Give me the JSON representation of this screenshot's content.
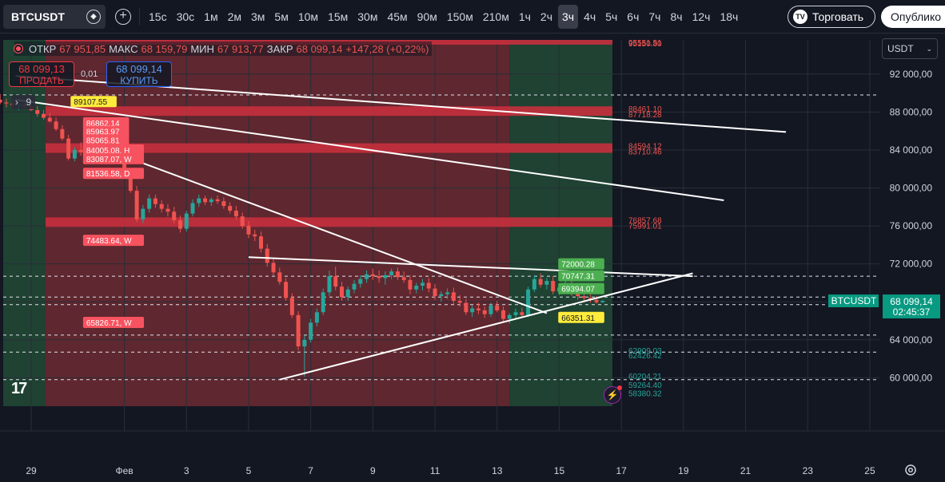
{
  "toolbar": {
    "symbol": "BTCUSDT",
    "intervals": [
      "15с",
      "30с",
      "1м",
      "2м",
      "3м",
      "5м",
      "10м",
      "15м",
      "30м",
      "45м",
      "90м",
      "150м",
      "210м",
      "1ч",
      "2ч",
      "3ч",
      "4ч",
      "5ч",
      "6ч",
      "7ч",
      "8ч",
      "12ч",
      "18ч"
    ],
    "active_interval": "3ч",
    "trade_label": "Торговать",
    "publish_label": "Опублико"
  },
  "legend": {
    "open_label": "ОТКР",
    "open": "67 951,85",
    "high_label": "МАКС",
    "high": "68 159,79",
    "low_label": "МИН",
    "low": "67 913,77",
    "close_label": "ЗАКР",
    "close": "68 099,14",
    "change": "+147,28 (+0,22%)"
  },
  "order": {
    "sell_price": "68 099,13",
    "sell_label": "ПРОДАТЬ",
    "spread": "0,01",
    "buy_price": "68 099,14",
    "buy_label": "КУПИТЬ"
  },
  "indicator_count": "9",
  "currency": "USDT",
  "price_tag": {
    "symbol": "BTCUSDT",
    "price": "68 099,14",
    "countdown": "02:45:37"
  },
  "colors": {
    "up": "#26a69a",
    "down": "#ef5350",
    "bg": "#131722",
    "zone_red": "#7a2e34",
    "zone_green": "#245238",
    "band_red": "#c7303d"
  },
  "chart_data": {
    "type": "candlestick",
    "ylim": [
      57000,
      95600
    ],
    "y_ticks": [
      92000,
      88000,
      84000,
      80000,
      76000,
      72000,
      68000,
      64000,
      60000
    ],
    "y_tick_labels": [
      "92 000,00",
      "88 000,00",
      "84 000,00",
      "80 000,00",
      "76 000,00",
      "72 000,00",
      "68 000,00",
      "64 000,00",
      "60 000,00"
    ],
    "x_ticks": [
      {
        "t": 0,
        "label": "29"
      },
      {
        "t": 3,
        "label": "Фев"
      },
      {
        "t": 5,
        "label": "3"
      },
      {
        "t": 7,
        "label": "5"
      },
      {
        "t": 9,
        "label": "7"
      },
      {
        "t": 11,
        "label": "9"
      },
      {
        "t": 13,
        "label": "11"
      },
      {
        "t": 15,
        "label": "13"
      },
      {
        "t": 17,
        "label": "15"
      },
      {
        "t": 19,
        "label": "17"
      },
      {
        "t": 21,
        "label": "19"
      },
      {
        "t": 23,
        "label": "21"
      },
      {
        "t": 25,
        "label": "23"
      },
      {
        "t": 27,
        "label": "25"
      }
    ],
    "bands": [
      {
        "y1": 95100,
        "y2": 95600,
        "label_a": "95551.51",
        "label_b": "95150.80"
      },
      {
        "y1": 87600,
        "y2": 88600,
        "label_a": "88461.10",
        "label_b": "87718.28"
      },
      {
        "y1": 83700,
        "y2": 84700,
        "label_a": "84594.12",
        "label_b": "83710.46"
      },
      {
        "y1": 75900,
        "y2": 76900,
        "label_a": "76857.68",
        "label_b": "75991.01"
      }
    ],
    "dashed_levels": [
      89800,
      70700,
      68500,
      67700,
      64500,
      62700,
      59800
    ],
    "green_labels": [
      {
        "y": 62900,
        "text": "62909.03"
      },
      {
        "y": 62400,
        "text": "62426.42"
      },
      {
        "y": 60200,
        "text": "60204.21"
      },
      {
        "y": 59264,
        "text": "59264.40"
      },
      {
        "y": 58380,
        "text": "58380.32"
      }
    ],
    "tags": [
      {
        "t": 0.6,
        "y": 89108,
        "text": "89107.55",
        "style": "yellow"
      },
      {
        "t": 1.0,
        "y": 86862,
        "text": "86862.14",
        "style": "red"
      },
      {
        "t": 1.0,
        "y": 85964,
        "text": "85963.97",
        "style": "red"
      },
      {
        "t": 1.0,
        "y": 85065,
        "text": "85065.81",
        "style": "red"
      },
      {
        "t": 1.0,
        "y": 84005,
        "text": "84005.08, H",
        "style": "red"
      },
      {
        "t": 1.0,
        "y": 83087,
        "text": "83087.07, W",
        "style": "red"
      },
      {
        "t": 1.0,
        "y": 81537,
        "text": "81536.58, D",
        "style": "red"
      },
      {
        "t": 1.0,
        "y": 74484,
        "text": "74483.64, W",
        "style": "red"
      },
      {
        "t": 1.0,
        "y": 65827,
        "text": "65826.71, W",
        "style": "red"
      },
      {
        "t": 16.3,
        "y": 72000,
        "text": "72000.28",
        "style": "green"
      },
      {
        "t": 16.3,
        "y": 70747,
        "text": "70747.31",
        "style": "green"
      },
      {
        "t": 16.3,
        "y": 69394,
        "text": "69394.07",
        "style": "green"
      },
      {
        "t": 16.3,
        "y": 66351,
        "text": "66351.31",
        "style": "yellow"
      }
    ],
    "trendlines": [
      {
        "t1": -0.5,
        "y1": 91800,
        "t2": 24.3,
        "y2": 85900
      },
      {
        "t1": -0.5,
        "y1": 89300,
        "t2": 22.3,
        "y2": 78700
      },
      {
        "t1": 1.8,
        "y1": 84800,
        "t2": 16.6,
        "y2": 66800
      },
      {
        "t1": 7.0,
        "y1": 72700,
        "t2": 21.3,
        "y2": 70700
      },
      {
        "t1": 8.0,
        "y1": 59800,
        "t2": 21.3,
        "y2": 71000
      }
    ],
    "candles": [
      [
        -1.0,
        89300,
        89900,
        88800,
        89000
      ],
      [
        -0.8,
        89000,
        89400,
        88500,
        88900
      ],
      [
        -0.6,
        88900,
        89300,
        88400,
        88700
      ],
      [
        -0.4,
        88700,
        89100,
        88200,
        88800
      ],
      [
        -0.2,
        88800,
        89200,
        88300,
        88600
      ],
      [
        0.0,
        88600,
        89000,
        88100,
        88200
      ],
      [
        0.2,
        88200,
        88600,
        87500,
        87800
      ],
      [
        0.4,
        87800,
        88200,
        87200,
        87400
      ],
      [
        0.6,
        87400,
        87900,
        86900,
        87000
      ],
      [
        0.8,
        87000,
        87400,
        86000,
        86200
      ],
      [
        1.0,
        86200,
        86600,
        85000,
        85200
      ],
      [
        1.2,
        85200,
        85600,
        82900,
        83100
      ],
      [
        1.4,
        83100,
        84300,
        82800,
        84000
      ],
      [
        1.6,
        84000,
        84800,
        83400,
        83800
      ],
      [
        1.8,
        83800,
        84200,
        82900,
        83100
      ],
      [
        2.0,
        83100,
        83800,
        82500,
        83500
      ],
      [
        2.2,
        83500,
        84400,
        83100,
        84200
      ],
      [
        2.4,
        84200,
        84900,
        83700,
        84000
      ],
      [
        2.6,
        84000,
        84300,
        82900,
        83200
      ],
      [
        2.8,
        83200,
        83600,
        82600,
        83000
      ],
      [
        3.0,
        83000,
        83400,
        81600,
        81800
      ],
      [
        3.2,
        81800,
        82100,
        79500,
        79700
      ],
      [
        3.4,
        79700,
        80200,
        76400,
        76700
      ],
      [
        3.6,
        76700,
        78200,
        76300,
        77800
      ],
      [
        3.8,
        77800,
        79300,
        77400,
        78900
      ],
      [
        4.0,
        78900,
        79300,
        77900,
        78300
      ],
      [
        4.2,
        78300,
        78700,
        77400,
        77800
      ],
      [
        4.4,
        77800,
        78300,
        77000,
        77500
      ],
      [
        4.6,
        77500,
        78000,
        76300,
        76600
      ],
      [
        4.8,
        76600,
        77100,
        75300,
        75700
      ],
      [
        5.0,
        75700,
        77600,
        75400,
        77300
      ],
      [
        5.2,
        77300,
        78800,
        77000,
        78400
      ],
      [
        5.4,
        78400,
        79300,
        78000,
        78900
      ],
      [
        5.6,
        78900,
        79200,
        78200,
        78500
      ],
      [
        5.8,
        78500,
        79000,
        78100,
        78800
      ],
      [
        6.0,
        78800,
        79200,
        78300,
        78600
      ],
      [
        6.2,
        78600,
        79000,
        77800,
        78100
      ],
      [
        6.4,
        78100,
        78500,
        77300,
        77600
      ],
      [
        6.6,
        77600,
        78100,
        76700,
        77000
      ],
      [
        6.8,
        77000,
        77400,
        75700,
        76000
      ],
      [
        7.0,
        76000,
        76500,
        74700,
        75100
      ],
      [
        7.2,
        75100,
        75600,
        74400,
        74900
      ],
      [
        7.4,
        74900,
        75400,
        73200,
        73600
      ],
      [
        7.6,
        73600,
        74100,
        71700,
        72100
      ],
      [
        7.8,
        72100,
        72600,
        70800,
        71100
      ],
      [
        8.0,
        71100,
        71600,
        69800,
        70100
      ],
      [
        8.2,
        70100,
        70500,
        68100,
        68400
      ],
      [
        8.4,
        68400,
        68900,
        66300,
        66600
      ],
      [
        8.6,
        66600,
        67000,
        62900,
        63300
      ],
      [
        8.8,
        63300,
        64500,
        60100,
        64000
      ],
      [
        9.0,
        64000,
        66200,
        63700,
        65800
      ],
      [
        9.2,
        65800,
        67300,
        65400,
        66900
      ],
      [
        9.4,
        66900,
        69400,
        66600,
        69000
      ],
      [
        9.6,
        69000,
        71300,
        68600,
        70700
      ],
      [
        9.8,
        70700,
        71700,
        69200,
        69600
      ],
      [
        10.0,
        69600,
        70100,
        68100,
        68500
      ],
      [
        10.2,
        68500,
        69600,
        68100,
        69300
      ],
      [
        10.4,
        69300,
        70300,
        68900,
        69900
      ],
      [
        10.6,
        69900,
        70800,
        69500,
        70400
      ],
      [
        10.8,
        70400,
        71300,
        70000,
        70900
      ],
      [
        11.0,
        70900,
        71500,
        70300,
        70700
      ],
      [
        11.2,
        70700,
        71300,
        70000,
        70500
      ],
      [
        11.4,
        70500,
        71200,
        69800,
        70800
      ],
      [
        11.6,
        70800,
        71500,
        70400,
        71200
      ],
      [
        11.8,
        71200,
        71600,
        70300,
        70600
      ],
      [
        12.0,
        70600,
        71200,
        70000,
        70300
      ],
      [
        12.2,
        70300,
        70800,
        68800,
        69300
      ],
      [
        12.4,
        69300,
        70000,
        68900,
        69700
      ],
      [
        12.6,
        69700,
        70400,
        69200,
        70000
      ],
      [
        12.8,
        70000,
        70500,
        69000,
        69400
      ],
      [
        13.0,
        69400,
        69900,
        68200,
        68600
      ],
      [
        13.2,
        68600,
        69100,
        68000,
        68800
      ],
      [
        13.4,
        68800,
        69400,
        68300,
        69000
      ],
      [
        13.6,
        69000,
        69500,
        67800,
        68100
      ],
      [
        13.8,
        68100,
        68700,
        67500,
        67900
      ],
      [
        14.0,
        67900,
        68300,
        66600,
        66900
      ],
      [
        14.2,
        66900,
        67600,
        66400,
        67300
      ],
      [
        14.4,
        67300,
        67900,
        66700,
        67100
      ],
      [
        14.6,
        67100,
        67500,
        66300,
        66700
      ],
      [
        14.8,
        66700,
        67900,
        66400,
        67600
      ],
      [
        15.0,
        67600,
        68100,
        66900,
        67100
      ],
      [
        15.2,
        67100,
        67500,
        65800,
        66200
      ],
      [
        15.4,
        66200,
        66800,
        65700,
        66600
      ],
      [
        15.6,
        66600,
        67300,
        66100,
        66900
      ],
      [
        15.8,
        66900,
        67400,
        66300,
        66600
      ],
      [
        16.0,
        66600,
        69600,
        66400,
        69300
      ],
      [
        16.2,
        69300,
        70800,
        69000,
        70400
      ],
      [
        16.4,
        70400,
        71000,
        69500,
        69800
      ],
      [
        16.6,
        69800,
        70500,
        69300,
        70200
      ],
      [
        16.8,
        70200,
        70700,
        68800,
        69100
      ],
      [
        17.0,
        69100,
        69800,
        68700,
        69500
      ],
      [
        17.2,
        69500,
        70300,
        69100,
        69800
      ],
      [
        17.4,
        69800,
        70200,
        68600,
        68900
      ],
      [
        17.6,
        68900,
        69300,
        68200,
        68600
      ],
      [
        17.8,
        68600,
        69000,
        68000,
        68400
      ],
      [
        18.0,
        68400,
        68900,
        67900,
        68200
      ],
      [
        18.2,
        68200,
        68600,
        67800,
        67950
      ],
      [
        18.4,
        67950,
        68160,
        67910,
        68099
      ]
    ]
  }
}
